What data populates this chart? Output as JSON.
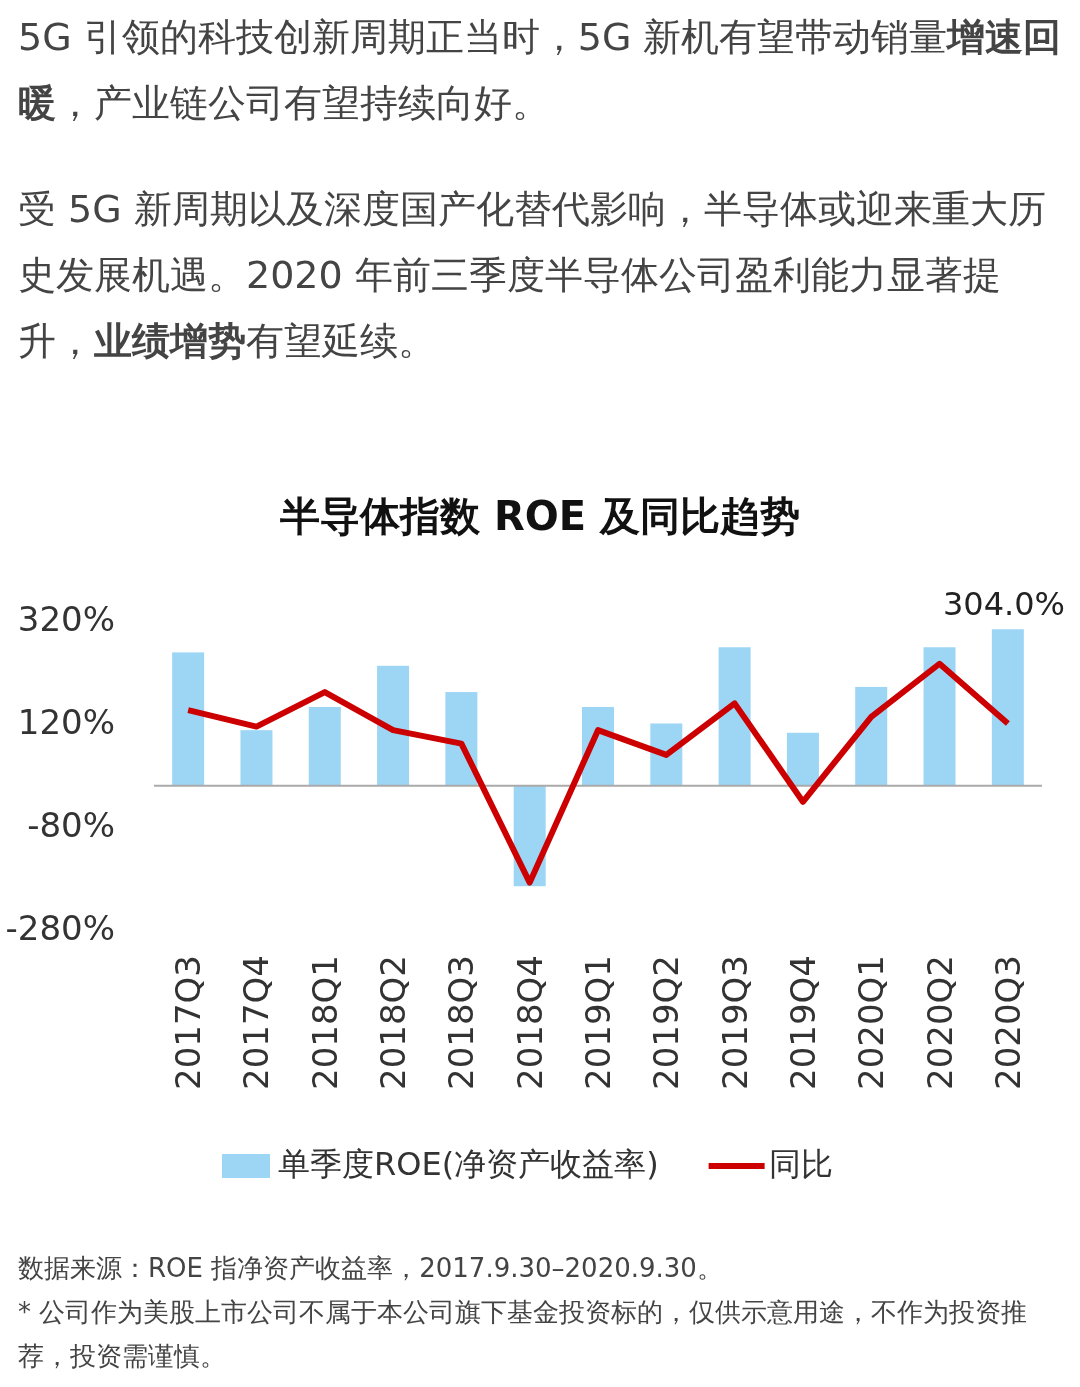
{
  "chart_data": {
    "type": "bar",
    "title": "半导体指数 ROE 及同比趋势",
    "annotations": [
      "5G 引领的科技创新周期正当时，5G 新机有望带动销量**增速回暖**，产业链公司有望持续向好。",
      "受 5G 新周期以及深度国产化替代影响，半导体或迎来重大历史发展机遇。2020 年前三季度半导体公司盈利能力显著提升，**业绩增势**有望延续。",
      "数据来源：ROE 指净资产收益率，2017.9.30–2020.9.30。",
      "* 公司作为美股上市公司不属于本公司旗下基金投资标的，仅供示意用途，不作为投资推荐，投资需谨慎。"
    ],
    "categories": [
      "2017Q3",
      "2017Q4",
      "2018Q1",
      "2018Q2",
      "2018Q3",
      "2018Q4",
      "2019Q1",
      "2019Q2",
      "2019Q3",
      "2019Q4",
      "2020Q1",
      "2020Q2",
      "2020Q3"
    ],
    "series": [
      {
        "name": "单季度ROE(净资产收益率)",
        "color": "#9dd5f5",
        "values": [
          259,
          108,
          153,
          233,
          182,
          -195,
          153,
          121,
          269,
          103,
          192,
          269,
          304
        ],
        "value_labels": [
          null,
          null,
          null,
          null,
          null,
          null,
          null,
          null,
          null,
          null,
          null,
          null,
          "304.0%"
        ]
      },
      {
        "name": "同比",
        "type": "line",
        "color": "#cc0000",
        "values": [
          147,
          115,
          182,
          108,
          82,
          -188,
          108,
          60,
          160,
          -31,
          134,
          237,
          121
        ]
      }
    ],
    "ylim": [
      -280,
      320
    ],
    "yticks": [
      {
        "value": 320,
        "label": "320%"
      },
      {
        "value": 120,
        "label": "120%"
      },
      {
        "value": -80,
        "label": "-80%"
      },
      {
        "value": -280,
        "label": "-280%"
      }
    ],
    "grid": false,
    "legend": "bottom",
    "marker": "none",
    "line_style": "solid"
  }
}
